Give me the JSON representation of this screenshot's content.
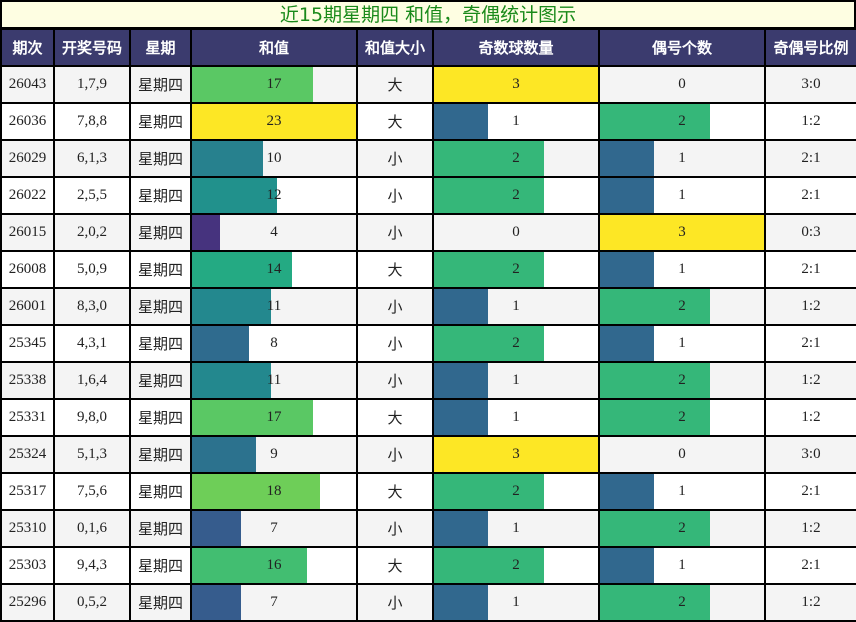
{
  "title": "近15期星期四 和值，奇偶统计图示",
  "headers": [
    "期次",
    "开奖号码",
    "星期",
    "和值",
    "和值大小",
    "奇数球数量",
    "偶号个数",
    "奇偶号比例"
  ],
  "colors": {
    "header_bg": "#3b3b6e",
    "title_bg": "#fefee2",
    "title_text": "#1a8a1a",
    "sum_scale": {
      "4": "#46337e",
      "7": "#365c8d",
      "8": "#2f6b8e",
      "9": "#2c728e",
      "10": "#27818e",
      "11": "#23888e",
      "12": "#21918c",
      "14": "#24aa83",
      "16": "#42be71",
      "17": "#5ac864",
      "18": "#6ece58",
      "23": "#fde725"
    },
    "count_scale": {
      "1": "#31688e",
      "2": "#35b779",
      "3": "#fde725"
    }
  },
  "rows": [
    {
      "period": "26043",
      "numbers": "1,7,9",
      "weekday": "星期四",
      "sum": "17",
      "size": "大",
      "odd": "3",
      "even": "0",
      "ratio": "3:0"
    },
    {
      "period": "26036",
      "numbers": "7,8,8",
      "weekday": "星期四",
      "sum": "23",
      "size": "大",
      "odd": "1",
      "even": "2",
      "ratio": "1:2"
    },
    {
      "period": "26029",
      "numbers": "6,1,3",
      "weekday": "星期四",
      "sum": "10",
      "size": "小",
      "odd": "2",
      "even": "1",
      "ratio": "2:1"
    },
    {
      "period": "26022",
      "numbers": "2,5,5",
      "weekday": "星期四",
      "sum": "12",
      "size": "小",
      "odd": "2",
      "even": "1",
      "ratio": "2:1"
    },
    {
      "period": "26015",
      "numbers": "2,0,2",
      "weekday": "星期四",
      "sum": "4",
      "size": "小",
      "odd": "0",
      "even": "3",
      "ratio": "0:3"
    },
    {
      "period": "26008",
      "numbers": "5,0,9",
      "weekday": "星期四",
      "sum": "14",
      "size": "大",
      "odd": "2",
      "even": "1",
      "ratio": "2:1"
    },
    {
      "period": "26001",
      "numbers": "8,3,0",
      "weekday": "星期四",
      "sum": "11",
      "size": "小",
      "odd": "1",
      "even": "2",
      "ratio": "1:2"
    },
    {
      "period": "25345",
      "numbers": "4,3,1",
      "weekday": "星期四",
      "sum": "8",
      "size": "小",
      "odd": "2",
      "even": "1",
      "ratio": "2:1"
    },
    {
      "period": "25338",
      "numbers": "1,6,4",
      "weekday": "星期四",
      "sum": "11",
      "size": "小",
      "odd": "1",
      "even": "2",
      "ratio": "1:2"
    },
    {
      "period": "25331",
      "numbers": "9,8,0",
      "weekday": "星期四",
      "sum": "17",
      "size": "大",
      "odd": "1",
      "even": "2",
      "ratio": "1:2"
    },
    {
      "period": "25324",
      "numbers": "5,1,3",
      "weekday": "星期四",
      "sum": "9",
      "size": "小",
      "odd": "3",
      "even": "0",
      "ratio": "3:0"
    },
    {
      "period": "25317",
      "numbers": "7,5,6",
      "weekday": "星期四",
      "sum": "18",
      "size": "大",
      "odd": "2",
      "even": "1",
      "ratio": "2:1"
    },
    {
      "period": "25310",
      "numbers": "0,1,6",
      "weekday": "星期四",
      "sum": "7",
      "size": "小",
      "odd": "1",
      "even": "2",
      "ratio": "1:2"
    },
    {
      "period": "25303",
      "numbers": "9,4,3",
      "weekday": "星期四",
      "sum": "16",
      "size": "大",
      "odd": "2",
      "even": "1",
      "ratio": "2:1"
    },
    {
      "period": "25296",
      "numbers": "0,5,2",
      "weekday": "星期四",
      "sum": "7",
      "size": "小",
      "odd": "1",
      "even": "2",
      "ratio": "1:2"
    }
  ]
}
